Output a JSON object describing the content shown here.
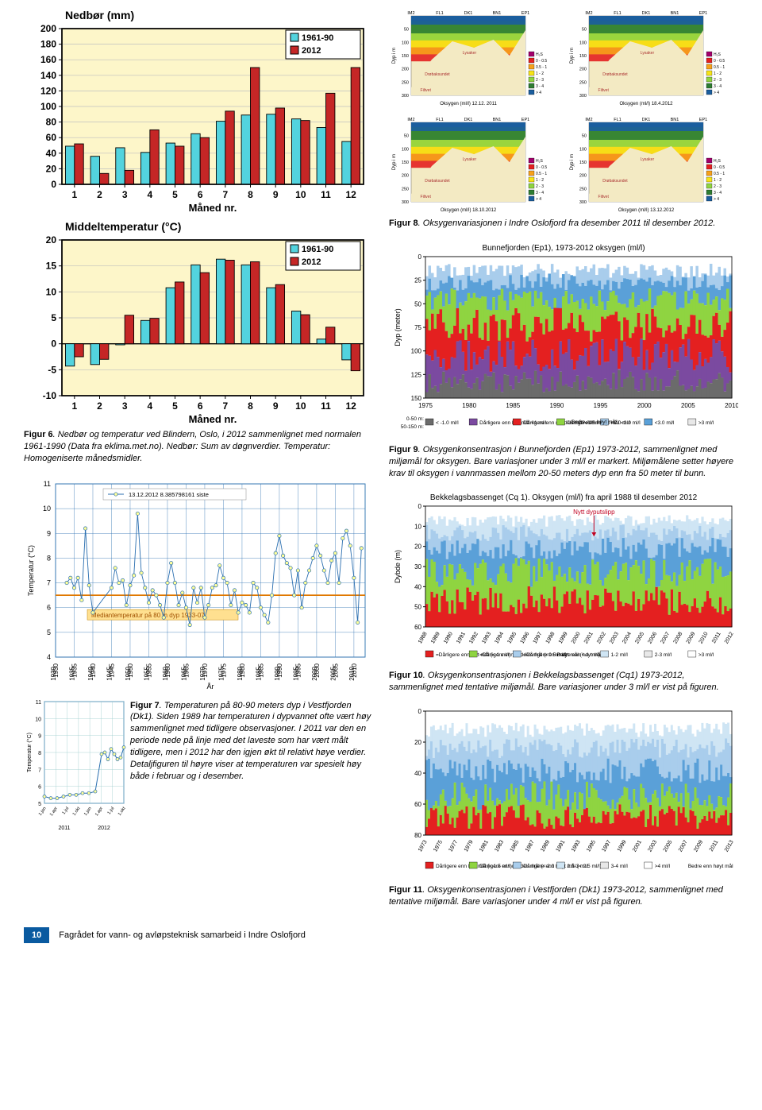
{
  "page": {
    "number": "10",
    "footer": "Fagrådet for vann- og avløpsteknisk samarbeid i Indre Oslofjord"
  },
  "colors": {
    "series1": "#53d3de",
    "series2": "#c52626",
    "barBorder": "#000000",
    "plotBg": "#fdf6c9",
    "axis": "#000000",
    "grid": "#bfbfbf",
    "oxy_h2s": "#a3006b",
    "oxy_0_05": "#e42020",
    "oxy_05_1": "#f7a11a",
    "oxy_1_2": "#f7e417",
    "oxy_2_3": "#8fd441",
    "oxy_3_4": "#2e7d32",
    "oxy_gt4": "#1b5e9e",
    "sea": "#5aa0d8",
    "seaLight": "#a9cdec",
    "seaBg": "#f3eac3",
    "purple": "#7b4aa0"
  },
  "precip": {
    "title": "Nedbør (mm)",
    "xlabel": "Måned nr.",
    "categories": [
      "1",
      "2",
      "3",
      "4",
      "5",
      "6",
      "7",
      "8",
      "9",
      "10",
      "11",
      "12"
    ],
    "series": [
      {
        "name": "1961-90",
        "color": "#53d3de",
        "values": [
          49,
          36,
          47,
          41,
          53,
          65,
          81,
          89,
          90,
          84,
          73,
          55
        ]
      },
      {
        "name": "2012",
        "color": "#c52626",
        "values": [
          52,
          14,
          18,
          70,
          49,
          60,
          94,
          150,
          98,
          82,
          117,
          150
        ]
      }
    ],
    "ylim": [
      0,
      200
    ],
    "ytick_step": 20,
    "bg": "#fdf6c9",
    "border": "#000000",
    "grid": "#bfbfbf",
    "bar_width": 0.36,
    "title_fontsize": 14,
    "label_fontsize": 13,
    "tick_fontsize": 12,
    "legend_fontsize": 11
  },
  "temp": {
    "title": "Middeltemperatur (°C)",
    "xlabel": "Måned nr.",
    "categories": [
      "1",
      "2",
      "3",
      "4",
      "5",
      "6",
      "7",
      "8",
      "9",
      "10",
      "11",
      "12"
    ],
    "series": [
      {
        "name": "1961-90",
        "color": "#53d3de",
        "values": [
          -4.3,
          -4.0,
          -0.2,
          4.5,
          10.8,
          15.2,
          16.3,
          15.2,
          10.8,
          6.3,
          0.9,
          -3.1
        ]
      },
      {
        "name": "2012",
        "color": "#c52626",
        "values": [
          -2.5,
          -3.0,
          5.5,
          4.9,
          11.9,
          13.7,
          16.1,
          15.8,
          11.4,
          5.6,
          3.2,
          -5.2
        ]
      }
    ],
    "ylim": [
      -10,
      20
    ],
    "ytick_step": 5,
    "bg": "#fdf6c9",
    "border": "#000000",
    "grid": "#bfbfbf",
    "bar_width": 0.36
  },
  "fig6": {
    "caption": "Figur 6. Nedbør og temperatur ved Blindern, Oslo, i 2012 sammenlignet med normalen 1961-1990 (Data fra eklima.met.no). Nedbør: Sum av døgnverdier. Temperatur: Homogeniserte månedsmidler."
  },
  "fig7": {
    "caption": "Figur 7. Temperaturen på 80-90 meters dyp i Vestfjorden (Dk1). Siden 1989 har temperaturen i dypvannet ofte vært høy sammenlignet med tidligere observasjoner. I 2011 var den en periode nede på linje med det laveste som har vært målt tidligere, men i 2012 har den igjen økt til relativt høye verdier. Detaljfiguren til høyre viser at temperaturen var spesielt høy både i februar og i desember.",
    "history": {
      "legend": "13.12.2012 8.385798161 siste",
      "median_label": "Mediantemperatur på 80 m dyp 1933-07",
      "median_value": 6.5,
      "xticks": [
        "1930",
        "1935",
        "1940",
        "1945",
        "1950",
        "1955",
        "1960",
        "1965",
        "1970",
        "1975",
        "1980",
        "1985",
        "1990",
        "1995",
        "2000",
        "2005",
        "2010"
      ],
      "xlabel": "År",
      "ylabel": "Temperatur (°C)",
      "ylim": [
        4,
        11
      ],
      "ytick_step": 1,
      "grid": "#2b6fb0",
      "line_color": "#2b6fb0",
      "marker": "circle",
      "marker_edge": "#2b6fb0",
      "marker_fill": "#ffff99",
      "series_approx": [
        [
          1933,
          7.0
        ],
        [
          1934,
          7.2
        ],
        [
          1935,
          6.8
        ],
        [
          1936,
          7.2
        ],
        [
          1937,
          6.3
        ],
        [
          1938,
          9.2
        ],
        [
          1939,
          6.9
        ],
        [
          1940,
          5.8
        ],
        [
          1945,
          6.8
        ],
        [
          1946,
          7.6
        ],
        [
          1947,
          7.0
        ],
        [
          1948,
          7.1
        ],
        [
          1949,
          6.1
        ],
        [
          1950,
          6.9
        ],
        [
          1951,
          7.3
        ],
        [
          1952,
          9.8
        ],
        [
          1953,
          7.4
        ],
        [
          1954,
          6.8
        ],
        [
          1955,
          6.2
        ],
        [
          1956,
          6.7
        ],
        [
          1957,
          6.5
        ],
        [
          1958,
          6.1
        ],
        [
          1959,
          5.6
        ],
        [
          1960,
          7.0
        ],
        [
          1961,
          7.8
        ],
        [
          1962,
          7.0
        ],
        [
          1963,
          6.1
        ],
        [
          1964,
          6.6
        ],
        [
          1965,
          6.0
        ],
        [
          1966,
          5.3
        ],
        [
          1967,
          6.8
        ],
        [
          1968,
          6.2
        ],
        [
          1969,
          6.8
        ],
        [
          1970,
          5.6
        ],
        [
          1971,
          6.1
        ],
        [
          1972,
          6.8
        ],
        [
          1973,
          6.9
        ],
        [
          1974,
          7.7
        ],
        [
          1975,
          7.2
        ],
        [
          1976,
          7.0
        ],
        [
          1977,
          6.1
        ],
        [
          1978,
          6.7
        ],
        [
          1979,
          5.8
        ],
        [
          1980,
          6.2
        ],
        [
          1981,
          6.1
        ],
        [
          1982,
          5.8
        ],
        [
          1983,
          7.0
        ],
        [
          1984,
          6.8
        ],
        [
          1985,
          6.0
        ],
        [
          1986,
          5.7
        ],
        [
          1987,
          5.4
        ],
        [
          1988,
          6.5
        ],
        [
          1989,
          8.2
        ],
        [
          1990,
          8.9
        ],
        [
          1991,
          8.1
        ],
        [
          1992,
          7.8
        ],
        [
          1993,
          7.6
        ],
        [
          1994,
          6.5
        ],
        [
          1995,
          7.5
        ],
        [
          1996,
          6.0
        ],
        [
          1997,
          7.0
        ],
        [
          1998,
          7.5
        ],
        [
          1999,
          8.0
        ],
        [
          2000,
          8.5
        ],
        [
          2001,
          8.1
        ],
        [
          2002,
          7.5
        ],
        [
          2003,
          7.0
        ],
        [
          2004,
          7.9
        ],
        [
          2005,
          8.2
        ],
        [
          2006,
          7.0
        ],
        [
          2007,
          8.8
        ],
        [
          2008,
          9.1
        ],
        [
          2009,
          8.5
        ],
        [
          2010,
          7.2
        ],
        [
          2011,
          5.4
        ],
        [
          2012,
          8.4
        ]
      ]
    },
    "detail": {
      "ylabel": "Temperatur (°C)",
      "ylim": [
        5,
        11
      ],
      "ytick_step": 1,
      "xticks": [
        "1.jan",
        "1.apr",
        "1.jul",
        "1.okt",
        "1.jan",
        "1.apr",
        "1.jul",
        "1.okt"
      ],
      "xlabels_bottom": [
        "2011",
        "2012"
      ],
      "points": [
        [
          0.0,
          5.4
        ],
        [
          0.08,
          5.3
        ],
        [
          0.16,
          5.3
        ],
        [
          0.24,
          5.4
        ],
        [
          0.32,
          5.5
        ],
        [
          0.4,
          5.5
        ],
        [
          0.48,
          5.6
        ],
        [
          0.56,
          5.6
        ],
        [
          0.64,
          5.7
        ],
        [
          0.72,
          7.9
        ],
        [
          0.76,
          8.0
        ],
        [
          0.8,
          7.6
        ],
        [
          0.84,
          8.2
        ],
        [
          0.88,
          7.9
        ],
        [
          0.92,
          7.6
        ],
        [
          0.96,
          7.7
        ],
        [
          1.0,
          8.3
        ]
      ]
    }
  },
  "fig8": {
    "caption": "Figur 8. Oksygenvariasjonen i Indre Oslofjord fra desember 2011 til desember 2012.",
    "panel_titles": [
      "Oksygen (ml/l) 12.12. 2011",
      "Oksygen (ml/l) 18.4.2012",
      "Oksygen (ml/l) 18.10.2012",
      "Oksygen (ml/l) 13.12.2012"
    ],
    "stations": [
      "IM2",
      "FL1",
      "DK1",
      "BN1",
      "EP1"
    ],
    "ylabel": "Dyp i m",
    "depth_ticks": [
      50,
      100,
      150,
      200,
      250,
      300
    ],
    "legend_items": [
      {
        "label": "H₂S",
        "color": "#a3006b"
      },
      {
        "label": "0 - 0.5",
        "color": "#e42020"
      },
      {
        "label": "0.5 - 1",
        "color": "#f7a11a"
      },
      {
        "label": "1 - 2",
        "color": "#f7e417"
      },
      {
        "label": "2 - 3",
        "color": "#8fd441"
      },
      {
        "label": "3 - 4",
        "color": "#2e7d32"
      },
      {
        "label": "> 4",
        "color": "#1b5e9e"
      }
    ],
    "region_labels": [
      "Drøbaksundet",
      "Vestfjorden",
      "Lysaker",
      "Bunnefjorden",
      "Bekkelags-bassenget",
      "Oslo havn",
      "Filtvet",
      "Oksygenrikt Drammensfjordvann"
    ]
  },
  "fig9": {
    "caption": "Figur 9. Oksygenkonsentrasjon i Bunnefjorden (Ep1) 1973-2012, sammenlignet med miljømål for oksygen. Bare variasjoner under 3 ml/l er markert. Miljømålene setter høyere krav til oksygen i vannmassen mellom 20-50 meters dyp enn fra 50 meter til bunn.",
    "title": "Bunnefjorden (Ep1), 1973-2012 oksygen (ml/l)",
    "xticks": [
      "1975",
      "1980",
      "1985",
      "1990",
      "1995",
      "2000",
      "2005",
      "2010"
    ],
    "ylabel": "Dyp (meter)",
    "yticks": [
      0,
      25,
      50,
      75,
      100,
      125,
      150
    ],
    "legend_rows": [
      {
        "depth": "0-50 m:",
        "cells": [
          "< -1.0 ml/l",
          "Dårligere enn lavt mål <1 ml/l",
          "Dårligere enn middels mål <1.5 ml/l",
          "Dårligere enn høyt mål <2.0 ml/l",
          "<2.0 ml/l",
          "<3.0 ml/l",
          ">3 ml/l"
        ]
      },
      {
        "depth": "50-150 m:",
        "cells": [
          "",
          "<0 ml/l",
          "<0.5 ml/l",
          "<1 ml/l",
          "",
          "",
          ""
        ]
      }
    ],
    "legend_colors": [
      "#6b6b6b",
      "#7b4aa0",
      "#e42020",
      "#8fd441",
      "#a9cdec",
      "#5aa0d8",
      "#e8e8e8"
    ],
    "legend_header": [
      "",
      "Dårligere enn lavt mål",
      "Dårligere enn middels mål",
      "Dårligere enn høyt mål",
      "Bedre enn høyt mål",
      "",
      ""
    ]
  },
  "fig10": {
    "caption": "Figur 10. Oksygenkonsentrasjonen i Bekkelagsbassenget (Cq1) 1973-2012, sammenlignet med tentative miljømål. Bare variasjoner under 3 ml/l er vist på figuren.",
    "title": "Bekkelagsbassenget (Cq 1). Oksygen (ml/l) fra april 1988 til desember 2012",
    "annotation": "Nytt dyputslipp",
    "ylabel": "Dybde (m)",
    "yticks": [
      0,
      10,
      20,
      30,
      40,
      50,
      60
    ],
    "xticks": [
      "1988",
      "1989",
      "1990",
      "1991",
      "1992",
      "1993",
      "1994",
      "1995",
      "1996",
      "1997",
      "1998",
      "1999",
      "2000",
      "2001",
      "2002",
      "2003",
      "2004",
      "2005",
      "2006",
      "2007",
      "2008",
      "2009",
      "2010",
      "2011",
      "2012"
    ],
    "legend": [
      {
        "label": "=Dårligere enn lavt mål (< 1 ml/l)",
        "color": "#e42020"
      },
      {
        "label": "=Dårligere enn middels mål (<0.5 ml/l)",
        "color": "#8fd441"
      },
      {
        "label": "=Dårligere enn høyt mål (< 1 ml/l)",
        "color": "#a9cdec"
      },
      {
        "label": "Bedre enn høyt mål",
        "color": null
      },
      {
        "label": "1-2 ml/l",
        "color": "#cfe5f4"
      },
      {
        "label": "2-3 ml/l",
        "color": "#e8e8e8"
      },
      {
        "label": ">3 ml/l",
        "color": "#ffffff"
      }
    ]
  },
  "fig11": {
    "caption": "Figur 11. Oksygenkonsentrasjonen i Vestfjorden (Dk1) 1973-2012, sammenlignet med tentative miljømål. Bare variasjoner under 4 ml/l er vist på figuren.",
    "ylabel": "",
    "yticks": [
      0,
      20,
      40,
      60,
      80
    ],
    "xticks": [
      "1973",
      "1975",
      "1977",
      "1979",
      "1981",
      "1983",
      "1985",
      "1987",
      "1989",
      "1991",
      "1993",
      "1995",
      "1997",
      "1999",
      "2001",
      "2003",
      "2005",
      "2007",
      "2009",
      "2011",
      "2013"
    ],
    "legend": [
      {
        "label": "Dårligere enn lavt mål (< 1.5 ml/l)",
        "color": "#e42020"
      },
      {
        "label": "Dårligere enn middels mål (< 2.0 ml/l)",
        "color": "#8fd441"
      },
      {
        "label": "Dårligere enn høyt mål (< 2.5 ml/l)",
        "color": "#a9cdec"
      },
      {
        "label": "2.5-3 ml/l",
        "color": "#cfe5f4"
      },
      {
        "label": "3-4 ml/l",
        "color": "#e8e8e8"
      },
      {
        "label": ">4 ml/l",
        "color": "#ffffff"
      },
      {
        "label": "Bedre enn høyt mål",
        "color": null
      }
    ]
  }
}
